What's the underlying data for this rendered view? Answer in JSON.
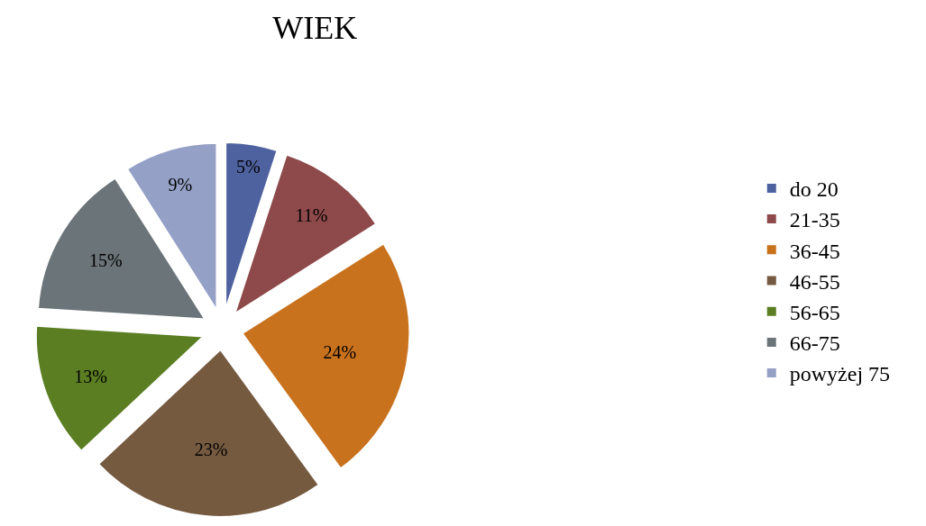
{
  "chart_data": {
    "type": "pie",
    "title": "WIEK",
    "categories": [
      "do 20",
      "21-35",
      "36-45",
      "46-55",
      "56-65",
      "66-75",
      "powyżej 75"
    ],
    "values": [
      5,
      11,
      24,
      23,
      13,
      15,
      9
    ],
    "value_labels": [
      "5%",
      "11%",
      "24%",
      "23%",
      "13%",
      "15%",
      "9%"
    ],
    "colors": [
      "#4f62a0",
      "#8e4a4a",
      "#c8721e",
      "#755a40",
      "#5b7e23",
      "#6b7478",
      "#95a0c6"
    ],
    "legend": "right"
  }
}
